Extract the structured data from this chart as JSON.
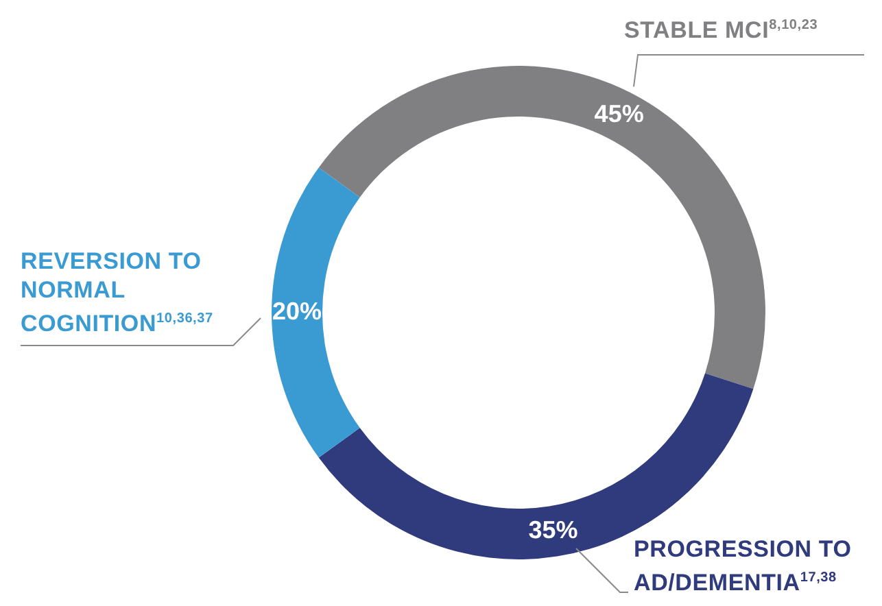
{
  "chart_data": {
    "type": "donut",
    "categories": [
      "STABLE MCI$^{8,10,23}$",
      "PROGRESSION TO AD/DEMENTIA$^{17,38}$",
      "REVERSION TO NORMAL COGNITION$^{10,36,37}$"
    ],
    "values": [
      45,
      35,
      20
    ],
    "colors": [
      "#808083",
      "#2f3b7d",
      "#3a9ad2"
    ],
    "value_labels": [
      "45%",
      "35%",
      "20%"
    ]
  }
}
